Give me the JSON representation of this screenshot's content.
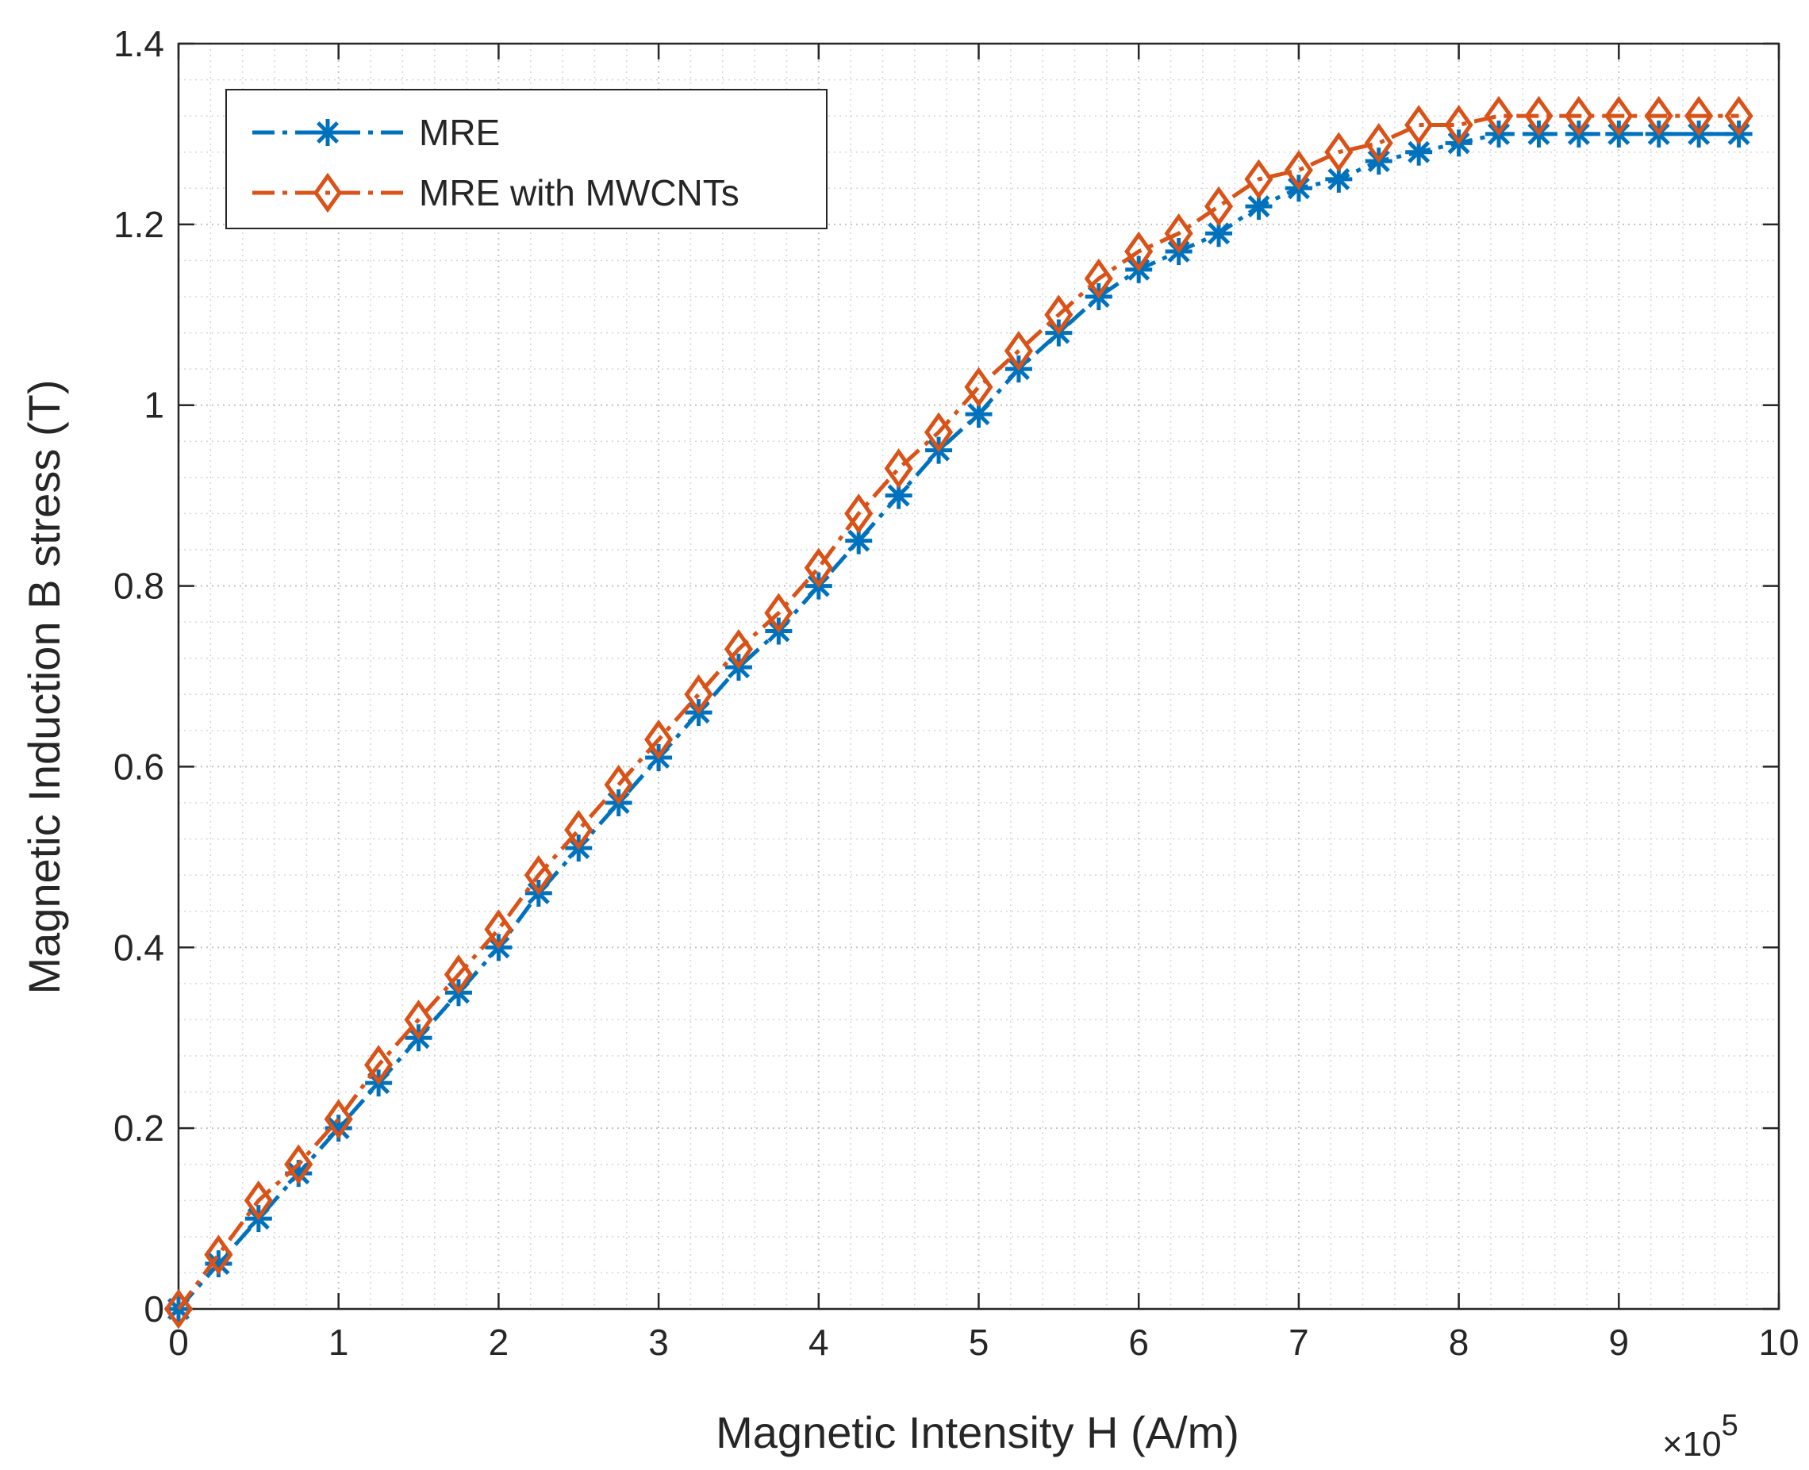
{
  "chart_data": {
    "type": "line",
    "title": "",
    "xlabel": "Magnetic Intensity H (A/m)",
    "ylabel": "Magnetic Induction B stress (T)",
    "x_exponent_label": {
      "base": "×10",
      "power": "5"
    },
    "xlim": [
      0,
      10
    ],
    "ylim": [
      0,
      1.4
    ],
    "x_scale": 100000,
    "grid": "minor dotted",
    "legend_position": "top-left",
    "xticks": [
      "0",
      "1",
      "2",
      "3",
      "4",
      "5",
      "6",
      "7",
      "8",
      "9",
      "10"
    ],
    "yticks": [
      "0",
      "0.2",
      "0.4",
      "0.6",
      "0.8",
      "1",
      "1.2",
      "1.4"
    ],
    "x": [
      0,
      0.25,
      0.5,
      0.75,
      1.0,
      1.25,
      1.5,
      1.75,
      2.0,
      2.25,
      2.5,
      2.75,
      3.0,
      3.25,
      3.5,
      3.75,
      4.0,
      4.25,
      4.5,
      4.75,
      5.0,
      5.25,
      5.5,
      5.75,
      6.0,
      6.25,
      6.5,
      6.75,
      7.0,
      7.25,
      7.5,
      7.75,
      8.0,
      8.25,
      8.5,
      8.75,
      9.0,
      9.25,
      9.5,
      9.75
    ],
    "series": [
      {
        "name": "MRE",
        "color": "#0072BD",
        "marker": "asterisk",
        "linestyle": "dash-dot",
        "values": [
          0.0,
          0.05,
          0.1,
          0.15,
          0.2,
          0.25,
          0.3,
          0.35,
          0.4,
          0.46,
          0.51,
          0.56,
          0.61,
          0.66,
          0.71,
          0.75,
          0.8,
          0.85,
          0.9,
          0.95,
          0.99,
          1.04,
          1.08,
          1.12,
          1.15,
          1.17,
          1.19,
          1.22,
          1.24,
          1.25,
          1.27,
          1.28,
          1.29,
          1.3,
          1.3,
          1.3,
          1.3,
          1.3,
          1.3,
          1.3
        ]
      },
      {
        "name": "MRE with MWCNTs",
        "color": "#D95319",
        "marker": "diamond",
        "linestyle": "dash-dot",
        "values": [
          0.0,
          0.06,
          0.12,
          0.16,
          0.21,
          0.27,
          0.32,
          0.37,
          0.42,
          0.48,
          0.53,
          0.58,
          0.63,
          0.68,
          0.73,
          0.77,
          0.82,
          0.88,
          0.93,
          0.97,
          1.02,
          1.06,
          1.1,
          1.14,
          1.17,
          1.19,
          1.22,
          1.25,
          1.26,
          1.28,
          1.29,
          1.31,
          1.31,
          1.32,
          1.32,
          1.32,
          1.32,
          1.32,
          1.32,
          1.32
        ]
      }
    ]
  }
}
